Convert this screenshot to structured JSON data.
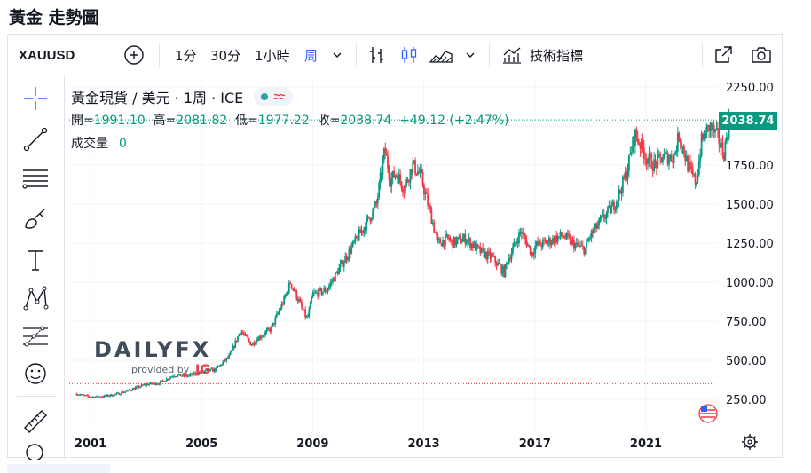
{
  "page_title": "黃金 走勢圖",
  "toolbar": {
    "symbol": "XAUUSD",
    "intervals": [
      "1分",
      "30分",
      "1小時",
      "周"
    ],
    "active_interval": "周",
    "indicators_label": "技術指標"
  },
  "legend": {
    "title": "黃金現貨 / 美元 · 1周 · ICE",
    "ohlc": {
      "open_label": "開=",
      "open": "1991.10",
      "high_label": "高=",
      "high": "2081.82",
      "low_label": "低=",
      "low": "1977.22",
      "close_label": "收=",
      "close": "2038.74",
      "change": "+49.12 (+2.47%)"
    },
    "volume_label": "成交量",
    "volume": "0"
  },
  "last_price_tag": "2038.74",
  "watermark": {
    "brand": "DAILYFX",
    "provided": "provided by",
    "partner": "IG"
  },
  "colors": {
    "up": "#089981",
    "down": "#f23645",
    "accent": "#2962ff"
  },
  "chart_data": {
    "type": "candlestick",
    "y_ticks": [
      "2250.00",
      "2000.00",
      "1750.00",
      "1500.00",
      "1250.00",
      "1000.00",
      "750.00",
      "500.00",
      "250.00"
    ],
    "x_ticks": [
      "2001",
      "2005",
      "2009",
      "2013",
      "2017",
      "2021"
    ],
    "ylim": [
      150,
      2300
    ],
    "x": [
      2000.5,
      2001,
      2001.5,
      2002,
      2002.5,
      2003,
      2003.5,
      2004,
      2004.5,
      2005,
      2005.5,
      2006,
      2006.4,
      2006.8,
      2007,
      2007.5,
      2008,
      2008.2,
      2008.5,
      2008.8,
      2009,
      2009.5,
      2010,
      2010.5,
      2011,
      2011.3,
      2011.6,
      2011.8,
      2012,
      2012.3,
      2012.6,
      2012.9,
      2013,
      2013.3,
      2013.5,
      2013.9,
      2014,
      2014.5,
      2015,
      2015.5,
      2015.9,
      2016,
      2016.5,
      2016.9,
      2017,
      2017.5,
      2018,
      2018.5,
      2018.8,
      2019,
      2019.5,
      2019.8,
      2020,
      2020.3,
      2020.6,
      2020.9,
      2021,
      2021.3,
      2021.6,
      2022,
      2022.2,
      2022.5,
      2022.8,
      2023,
      2023.3,
      2023.6,
      2023.8,
      2024
    ],
    "values": [
      285,
      265,
      270,
      285,
      315,
      345,
      355,
      405,
      400,
      425,
      440,
      525,
      690,
      600,
      640,
      700,
      900,
      1000,
      880,
      760,
      920,
      950,
      1100,
      1250,
      1400,
      1500,
      1850,
      1650,
      1700,
      1600,
      1750,
      1680,
      1600,
      1400,
      1250,
      1280,
      1250,
      1280,
      1200,
      1150,
      1060,
      1130,
      1330,
      1180,
      1230,
      1260,
      1300,
      1230,
      1210,
      1300,
      1420,
      1480,
      1550,
      1700,
      1950,
      1850,
      1800,
      1750,
      1800,
      1800,
      1950,
      1750,
      1630,
      1900,
      2000,
      1920,
      1820,
      2038.74
    ],
    "support_level": 350
  }
}
